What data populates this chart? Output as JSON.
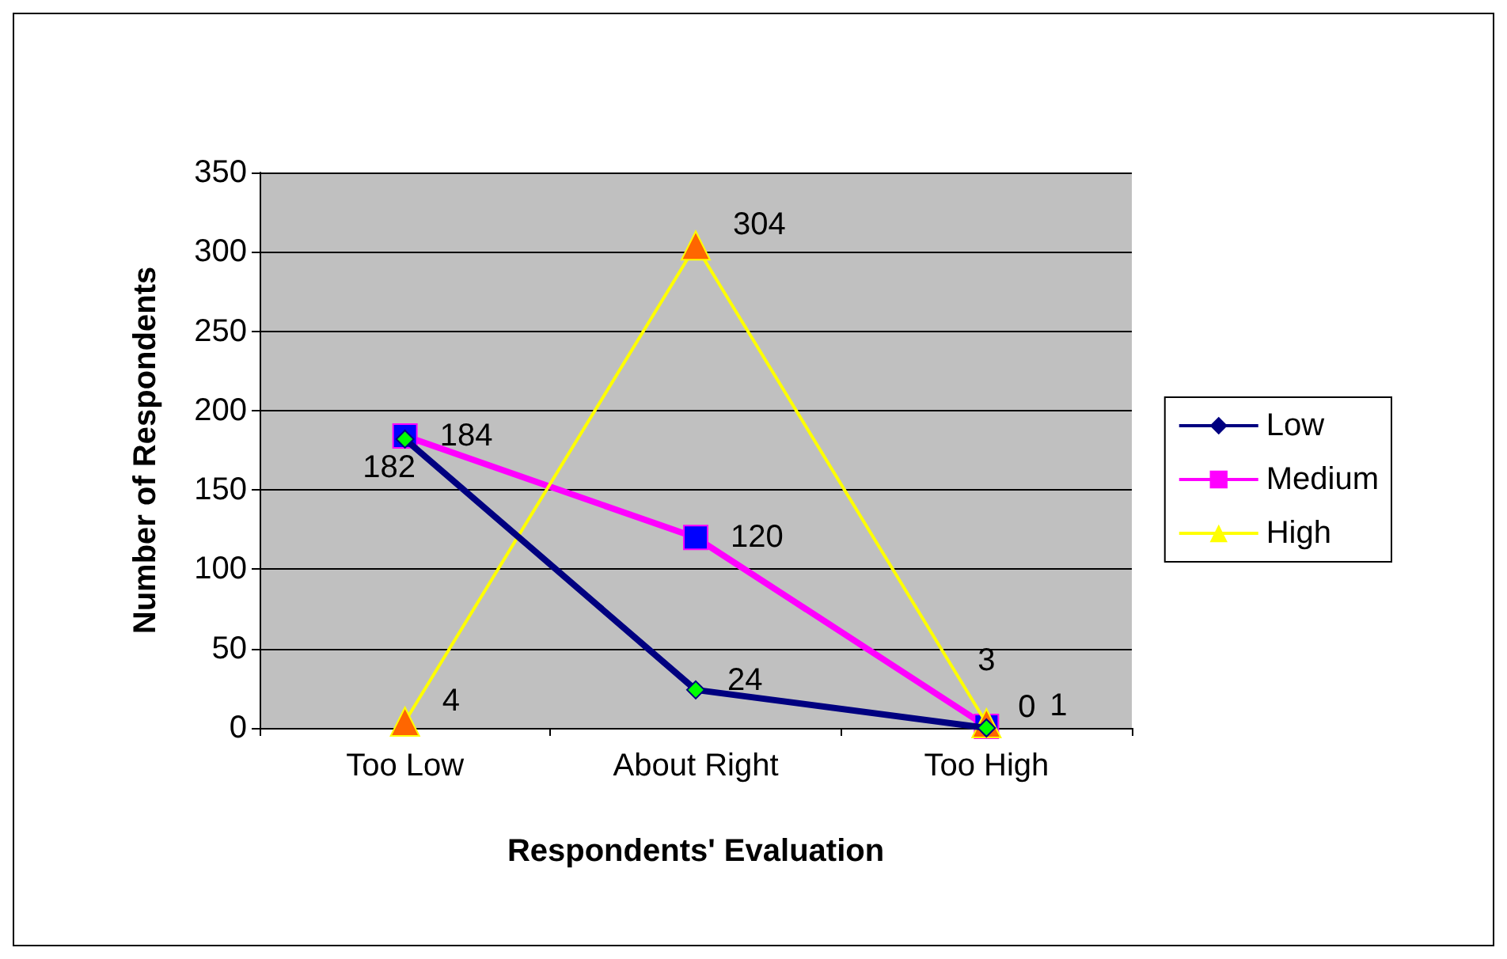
{
  "chart_data": {
    "type": "line",
    "xlabel": "Respondents' Evaluation",
    "ylabel": "Number of Respondents",
    "categories": [
      "Too Low",
      "About Right",
      "Too High"
    ],
    "series": [
      {
        "name": "Low",
        "color": "#000080",
        "colors": [
          "#00ff00",
          "#00ff00",
          "#00ff00"
        ],
        "marker": "diamond",
        "values": [
          182,
          24,
          0
        ]
      },
      {
        "name": "Medium",
        "color": "#ff00ff",
        "colors": [
          "#0000ff",
          "#0000ff",
          "#0000ff"
        ],
        "marker": "square",
        "values": [
          184,
          120,
          1
        ]
      },
      {
        "name": "High",
        "color": "#ffff00",
        "colors": [
          "#ff6600",
          "#ff6600",
          "#ff6600"
        ],
        "marker": "triangle",
        "values": [
          4,
          304,
          3
        ]
      }
    ],
    "ylim": [
      0,
      350
    ],
    "yticks": [
      0,
      50,
      100,
      150,
      200,
      250,
      300,
      350
    ],
    "grid": "y",
    "legend": "right",
    "data_labels": true
  }
}
